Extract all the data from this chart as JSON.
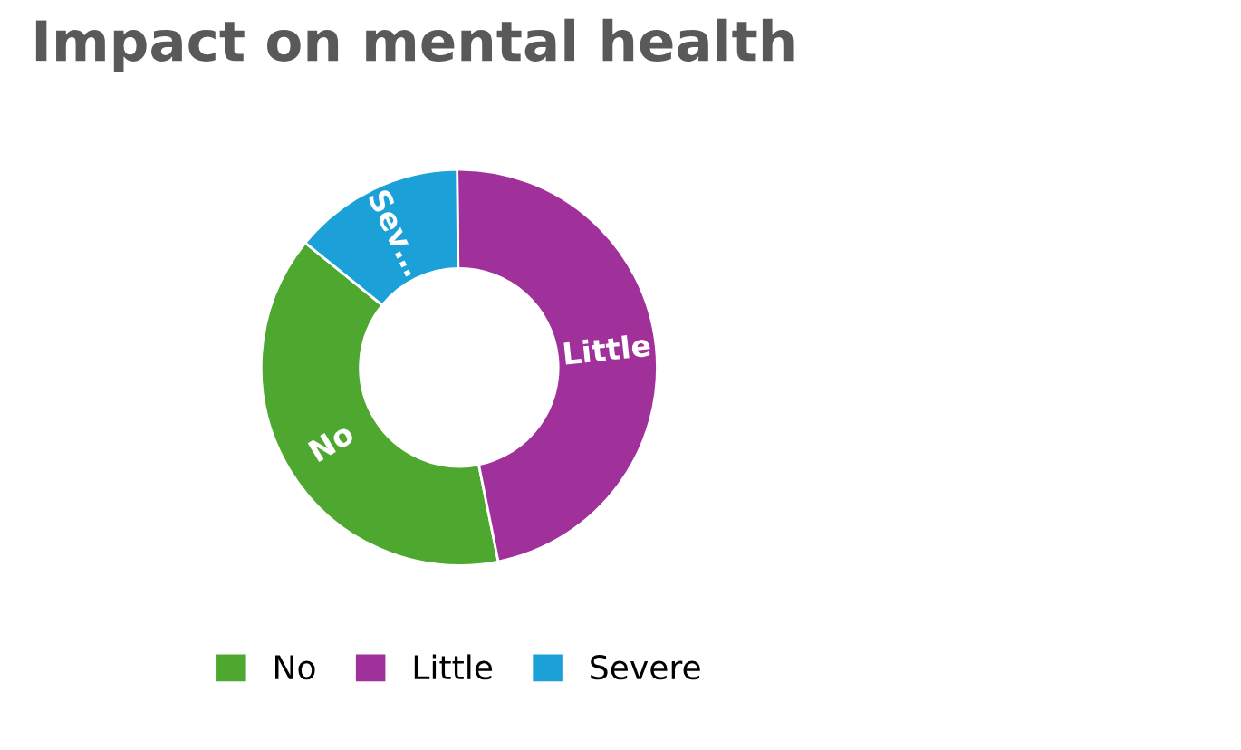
{
  "chart_data": {
    "type": "donut",
    "title": "Impact on mental health",
    "categories": [
      "No",
      "Little",
      "Severe"
    ],
    "values": [
      39,
      47,
      14
    ],
    "colors": [
      "#4ea72e",
      "#a0309a",
      "#1ba1d8"
    ],
    "annotations": [
      {
        "text": "No",
        "x": "No"
      },
      {
        "text": "Little",
        "x": "Little"
      },
      {
        "text": "Sev…",
        "x": "Severe"
      }
    ],
    "legend": "bottom"
  }
}
